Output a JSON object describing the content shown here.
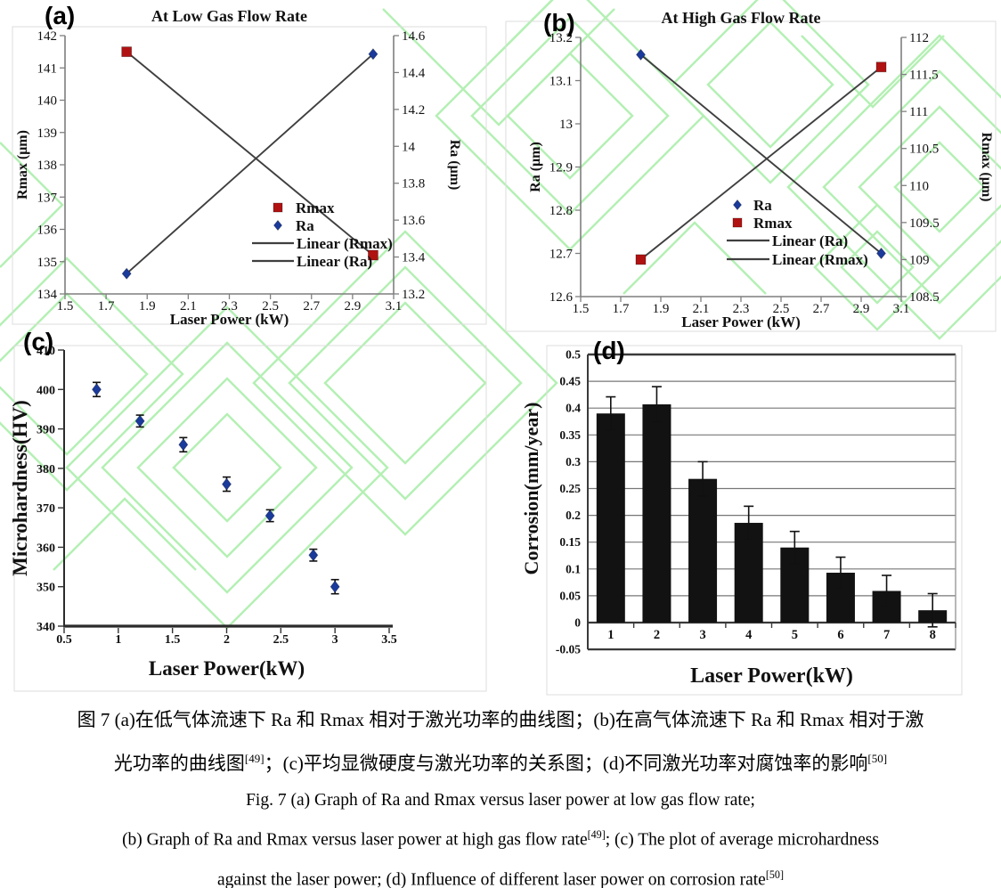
{
  "figure": {
    "watermark_color": "#b4f0b4",
    "panels": [
      {
        "tag": "(a)"
      },
      {
        "tag": "(b)"
      },
      {
        "tag": "(c)"
      },
      {
        "tag": "(d)"
      }
    ]
  },
  "chart_data": [
    {
      "panel": "a",
      "type": "scatter",
      "title": "At Low Gas Flow Rate",
      "xlabel": "Laser Power (kW)",
      "x_range": [
        1.5,
        3.1
      ],
      "x_tick_labels": [
        "1.5",
        "1.7",
        "1.9",
        "2.1",
        "2.3",
        "2.5",
        "2.7",
        "2.9",
        "3.1"
      ],
      "left_axis": {
        "label": "Rmax (μm)",
        "range": [
          134,
          142
        ],
        "tick_labels": [
          "134",
          "135",
          "136",
          "137",
          "138",
          "139",
          "140",
          "141",
          "142"
        ]
      },
      "right_axis": {
        "label": "Ra (μm)",
        "range": [
          13.2,
          14.6
        ],
        "tick_labels": [
          "13.2",
          "13.4",
          "13.6",
          "13.8",
          "14",
          "14.2",
          "14.4",
          "14.6"
        ]
      },
      "line_color": "#3f3f3f",
      "axis_color": "#7f7f7f",
      "series": [
        {
          "name": "Rmax",
          "axis": "left",
          "marker": "square",
          "color": "#b01212",
          "x": [
            1.8,
            3.0
          ],
          "y": [
            141.5,
            135.2
          ],
          "trendline": true
        },
        {
          "name": "Ra",
          "axis": "right",
          "marker": "diamond",
          "color": "#1a3a9c",
          "x": [
            1.8,
            3.0
          ],
          "y": [
            13.31,
            14.5
          ],
          "trendline": true
        }
      ],
      "legend": [
        {
          "swatch": "square",
          "color": "#b01212",
          "label": "Rmax"
        },
        {
          "swatch": "diamond",
          "color": "#1a3a9c",
          "label": "Ra"
        },
        {
          "swatch": "line",
          "color": "#3f3f3f",
          "label": "Linear (Rmax)"
        },
        {
          "swatch": "line",
          "color": "#3f3f3f",
          "label": "Linear (Ra)"
        }
      ]
    },
    {
      "panel": "b",
      "type": "scatter",
      "title": "At High Gas Flow Rate",
      "xlabel": "Laser Power (kW)",
      "x_range": [
        1.5,
        3.1
      ],
      "x_tick_labels": [
        "1.5",
        "1.7",
        "1.9",
        "2.1",
        "2.3",
        "2.5",
        "2.7",
        "2.9",
        "3.1"
      ],
      "left_axis": {
        "label": "Ra (μm)",
        "range": [
          12.6,
          13.2
        ],
        "tick_labels": [
          "12.6",
          "12.7",
          "12.8",
          "12.9",
          "13",
          "13.1",
          "13.2"
        ]
      },
      "right_axis": {
        "label": "Rmax (μm)",
        "range": [
          108.5,
          112
        ],
        "tick_labels": [
          "108.5",
          "109",
          "109.5",
          "110",
          "110.5",
          "111",
          "111.5",
          "112"
        ]
      },
      "line_color": "#3f3f3f",
      "axis_color": "#7f7f7f",
      "series": [
        {
          "name": "Ra",
          "axis": "left",
          "marker": "diamond",
          "color": "#1a3a9c",
          "x": [
            1.8,
            3.0
          ],
          "y": [
            13.16,
            12.7
          ],
          "trendline": true
        },
        {
          "name": "Rmax",
          "axis": "right",
          "marker": "square",
          "color": "#b01212",
          "x": [
            1.8,
            3.0
          ],
          "y": [
            109.0,
            111.6
          ],
          "trendline": true
        }
      ],
      "legend": [
        {
          "swatch": "diamond",
          "color": "#1a3a9c",
          "label": "Ra"
        },
        {
          "swatch": "square",
          "color": "#b01212",
          "label": "Rmax"
        },
        {
          "swatch": "line",
          "color": "#3f3f3f",
          "label": "Linear (Ra)"
        },
        {
          "swatch": "line",
          "color": "#3f3f3f",
          "label": "Linear (Rmax)"
        }
      ]
    },
    {
      "panel": "c",
      "type": "scatter",
      "title": "",
      "xlabel": "Laser Power(kW)",
      "ylabel": "Microhardness(HV)",
      "x_range": [
        0.5,
        3.5
      ],
      "x_tick_labels": [
        "0.5",
        "1",
        "1.5",
        "2",
        "2.5",
        "3",
        "3.5"
      ],
      "y_range": [
        340,
        410
      ],
      "y_tick_labels": [
        "340",
        "350",
        "360",
        "370",
        "380",
        "390",
        "400",
        "410"
      ],
      "marker_color": "#1a3a9c",
      "error_color": "#111111",
      "x": [
        0.8,
        1.2,
        1.6,
        2.0,
        2.4,
        2.8,
        3.0
      ],
      "y": [
        400,
        392,
        386,
        376,
        368,
        358,
        350
      ],
      "yerr": [
        1.8,
        1.5,
        1.8,
        1.8,
        1.5,
        1.5,
        1.8
      ]
    },
    {
      "panel": "d",
      "type": "bar",
      "xlabel": "Laser Power(kW)",
      "ylabel": "Corrosion(mm/year)",
      "categories": [
        "1",
        "2",
        "3",
        "4",
        "5",
        "6",
        "7",
        "8"
      ],
      "values": [
        0.39,
        0.407,
        0.268,
        0.186,
        0.14,
        0.093,
        0.059,
        0.023
      ],
      "errors": [
        0.031,
        0.033,
        0.032,
        0.031,
        0.03,
        0.029,
        0.029,
        0.031
      ],
      "y_range": [
        -0.05,
        0.5
      ],
      "y_tick_labels": [
        "-0.05",
        "0",
        "0.05",
        "0.1",
        "0.15",
        "0.2",
        "0.25",
        "0.3",
        "0.35",
        "0.4",
        "0.45",
        "0.5"
      ],
      "bar_color": "#121212",
      "grid": true
    }
  ],
  "caption": {
    "lines": [
      {
        "lang": "zh",
        "parts": [
          {
            "t": "图 7 (a)在低气体流速下 Ra 和 Rmax 相对于激光功率的曲线图；(b)在高气体流速下 Ra 和 Rmax 相对于激"
          }
        ]
      },
      {
        "lang": "zh",
        "parts": [
          {
            "t": "光功率的曲线图"
          },
          {
            "t": "[49]",
            "sup": true
          },
          {
            "t": "；(c)平均显微硬度与激光功率的关系图；(d)不同激光功率对腐蚀率的影响"
          },
          {
            "t": "[50]",
            "sup": true
          }
        ]
      },
      {
        "lang": "en",
        "parts": [
          {
            "t": "Fig. 7 (a) Graph of Ra and Rmax versus laser power at low gas flow rate;"
          }
        ]
      },
      {
        "lang": "en",
        "parts": [
          {
            "t": "(b) Graph of Ra and Rmax versus laser power at high gas flow rate"
          },
          {
            "t": "[49]",
            "sup": true
          },
          {
            "t": "; (c) The plot of average microhardness"
          }
        ]
      },
      {
        "lang": "en",
        "parts": [
          {
            "t": "against the laser power; (d) Influence of different laser power on corrosion rate"
          },
          {
            "t": "[50]",
            "sup": true
          }
        ]
      }
    ]
  }
}
